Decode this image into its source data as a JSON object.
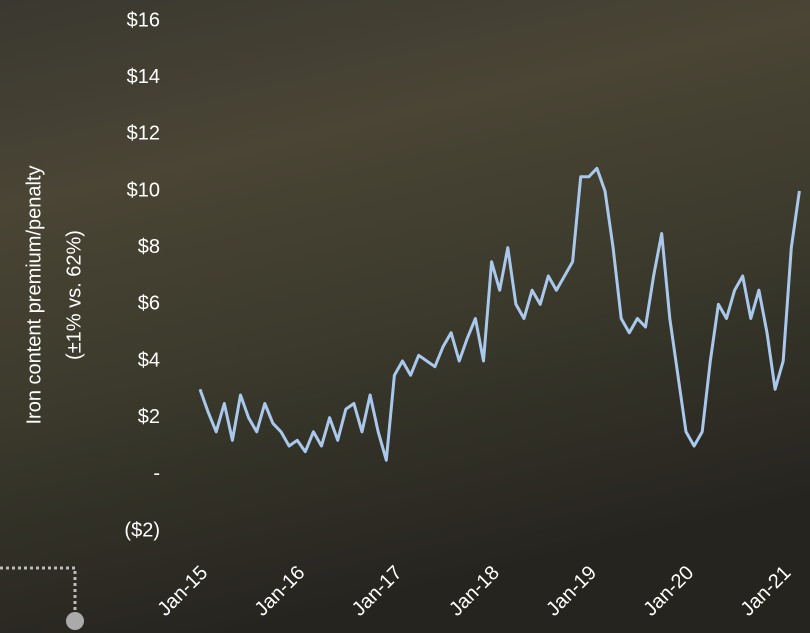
{
  "chart_data": {
    "type": "line",
    "ylabel": [
      "Iron content premium/penalty",
      "(±1% vs. 62%)"
    ],
    "categories": [
      "Jan-15",
      null,
      null,
      null,
      null,
      null,
      null,
      null,
      null,
      null,
      null,
      null,
      "Jan-16",
      null,
      null,
      null,
      null,
      null,
      null,
      null,
      null,
      null,
      null,
      null,
      "Jan-17",
      null,
      null,
      null,
      null,
      null,
      null,
      null,
      null,
      null,
      null,
      null,
      "Jan-18",
      null,
      null,
      null,
      null,
      null,
      null,
      null,
      null,
      null,
      null,
      null,
      "Jan-19",
      null,
      null,
      null,
      null,
      null,
      null,
      null,
      null,
      null,
      null,
      null,
      "Jan-20",
      null,
      null,
      null,
      null,
      null,
      null,
      null,
      null,
      null,
      null,
      null,
      "Jan-21",
      null,
      null
    ],
    "series": [
      {
        "color": "#a9c8ec",
        "values": [
          3.0,
          2.2,
          1.5,
          2.5,
          1.2,
          2.8,
          2.0,
          1.5,
          2.5,
          1.8,
          1.5,
          1.0,
          1.2,
          0.8,
          1.5,
          1.0,
          2.0,
          1.2,
          2.3,
          2.5,
          1.5,
          2.8,
          1.5,
          0.5,
          3.5,
          4.0,
          3.5,
          4.2,
          4.0,
          3.8,
          4.5,
          5.0,
          4.0,
          4.8,
          5.5,
          4.0,
          7.5,
          6.5,
          8.0,
          6.0,
          5.5,
          6.5,
          6.0,
          7.0,
          6.5,
          7.0,
          7.5,
          10.5,
          10.5,
          10.8,
          10.0,
          8.0,
          5.5,
          5.0,
          5.5,
          5.2,
          7.0,
          8.5,
          5.5,
          3.5,
          1.5,
          1.0,
          1.5,
          4.0,
          6.0,
          5.5,
          6.5,
          7.0,
          5.5,
          6.5,
          5.0,
          3.0,
          4.0,
          8.0,
          10.0
        ]
      }
    ],
    "ylim": [
      -2,
      16
    ],
    "yticks": [
      {
        "value": -2,
        "label": "($2)"
      },
      {
        "value": 0,
        "label": "-"
      },
      {
        "value": 2,
        "label": "$2"
      },
      {
        "value": 4,
        "label": "$4"
      },
      {
        "value": 6,
        "label": "$6"
      },
      {
        "value": 8,
        "label": "$8"
      },
      {
        "value": 10,
        "label": "$10"
      },
      {
        "value": 12,
        "label": "$12"
      },
      {
        "value": 14,
        "label": "$14"
      },
      {
        "value": 16,
        "label": "$16"
      }
    ]
  }
}
